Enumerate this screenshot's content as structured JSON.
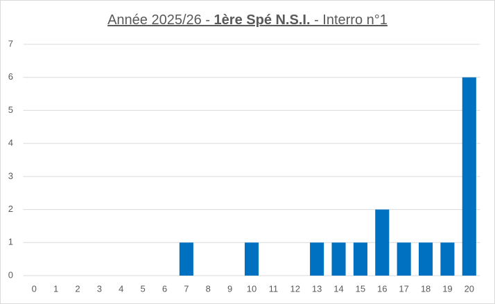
{
  "chart_data": {
    "type": "bar",
    "title": [
      {
        "text": "Année 2025/26 - ",
        "bold": false
      },
      {
        "text": "1ère Spé N.S.I.",
        "bold": true
      },
      {
        "text": " - Interro n°1",
        "bold": false
      }
    ],
    "categories": [
      "0",
      "1",
      "2",
      "3",
      "4",
      "5",
      "6",
      "7",
      "8",
      "9",
      "10",
      "11",
      "12",
      "13",
      "14",
      "15",
      "16",
      "17",
      "18",
      "19",
      "20"
    ],
    "values": [
      0,
      0,
      0,
      0,
      0,
      0,
      0,
      1,
      0,
      0,
      1,
      0,
      0,
      1,
      1,
      1,
      2,
      1,
      1,
      1,
      6
    ],
    "color": "#0070c0",
    "ylim": [
      0,
      7
    ],
    "yticks": [
      0,
      1,
      2,
      3,
      4,
      5,
      6,
      7
    ],
    "grid": true
  }
}
